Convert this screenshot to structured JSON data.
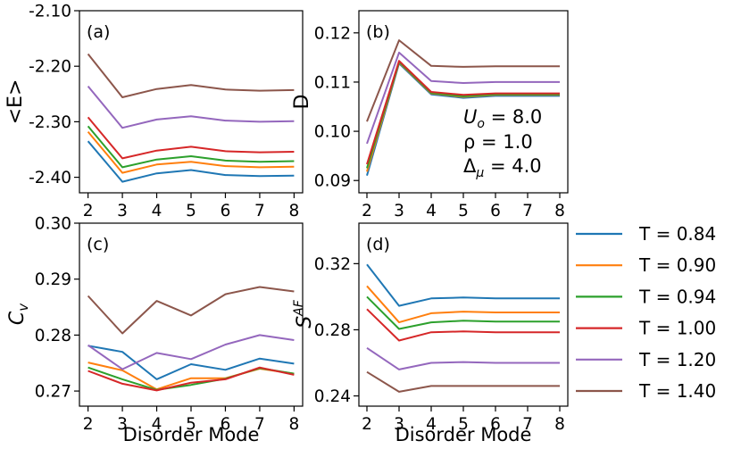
{
  "legend": {
    "entries": [
      "T = 0.84",
      "T = 0.90",
      "T = 0.94",
      "T = 1.00",
      "T = 1.20",
      "T = 1.40"
    ],
    "colors": [
      "#1f77b4",
      "#ff7f0e",
      "#2ca02c",
      "#d62728",
      "#9467bd",
      "#8c564b"
    ]
  },
  "annotation": {
    "line1": {
      "sym": "U",
      "sub": "o",
      "rest": " = 8.0"
    },
    "line2": "ρ = 1.0",
    "line3": {
      "sym": "Δ",
      "sub": "μ",
      "rest": " = 4.0"
    }
  },
  "chart_data": [
    {
      "id": "a",
      "type": "line",
      "panel_label": "(a)",
      "ylabel": "<E>",
      "xlabel": "",
      "x": [
        2,
        3,
        4,
        5,
        6,
        7,
        8
      ],
      "xlim": [
        1.75,
        8.25
      ],
      "ylim": [
        -2.428,
        -2.1
      ],
      "xticks": [
        "2",
        "3",
        "4",
        "5",
        "6",
        "7",
        "8"
      ],
      "yticks": [
        {
          "value": -2.1,
          "label": "-2.10"
        },
        {
          "value": -2.2,
          "label": "-2.20"
        },
        {
          "value": -2.3,
          "label": "-2.30"
        },
        {
          "value": -2.4,
          "label": "-2.40"
        }
      ],
      "series": [
        {
          "name": "T = 0.84",
          "color": "#1f77b4",
          "values": [
            -2.335,
            -2.408,
            -2.393,
            -2.387,
            -2.396,
            -2.398,
            -2.397
          ]
        },
        {
          "name": "T = 0.90",
          "color": "#ff7f0e",
          "values": [
            -2.318,
            -2.392,
            -2.377,
            -2.372,
            -2.38,
            -2.382,
            -2.381
          ]
        },
        {
          "name": "T = 0.94",
          "color": "#2ca02c",
          "values": [
            -2.308,
            -2.382,
            -2.368,
            -2.362,
            -2.37,
            -2.372,
            -2.371
          ]
        },
        {
          "name": "T = 1.00",
          "color": "#d62728",
          "values": [
            -2.292,
            -2.366,
            -2.352,
            -2.345,
            -2.353,
            -2.355,
            -2.354
          ]
        },
        {
          "name": "T = 1.20",
          "color": "#9467bd",
          "values": [
            -2.236,
            -2.311,
            -2.296,
            -2.29,
            -2.298,
            -2.3,
            -2.299
          ]
        },
        {
          "name": "T = 1.40",
          "color": "#8c564b",
          "values": [
            -2.178,
            -2.256,
            -2.241,
            -2.234,
            -2.242,
            -2.244,
            -2.243
          ]
        }
      ]
    },
    {
      "id": "b",
      "type": "line",
      "panel_label": "(b)",
      "ylabel": "D",
      "xlabel": "",
      "x": [
        2,
        3,
        4,
        5,
        6,
        7,
        8
      ],
      "xlim": [
        1.75,
        8.25
      ],
      "ylim": [
        0.0875,
        0.1245
      ],
      "xticks": [
        "2",
        "3",
        "4",
        "5",
        "6",
        "7",
        "8"
      ],
      "yticks": [
        {
          "value": 0.09,
          "label": "0.09"
        },
        {
          "value": 0.1,
          "label": "0.10"
        },
        {
          "value": 0.11,
          "label": "0.11"
        },
        {
          "value": 0.12,
          "label": "0.12"
        }
      ],
      "series": [
        {
          "name": "T = 0.84",
          "color": "#1f77b4",
          "values": [
            0.091,
            0.1138,
            0.1075,
            0.1068,
            0.1072,
            0.1072,
            0.1072
          ]
        },
        {
          "name": "T = 0.90",
          "color": "#ff7f0e",
          "values": [
            0.0918,
            0.114,
            0.1077,
            0.107,
            0.1074,
            0.1074,
            0.1074
          ]
        },
        {
          "name": "T = 0.94",
          "color": "#2ca02c",
          "values": [
            0.0925,
            0.1141,
            0.1078,
            0.1071,
            0.1075,
            0.1075,
            0.1075
          ]
        },
        {
          "name": "T = 1.00",
          "color": "#d62728",
          "values": [
            0.0933,
            0.1143,
            0.108,
            0.1074,
            0.1077,
            0.1077,
            0.1077
          ]
        },
        {
          "name": "T = 1.20",
          "color": "#9467bd",
          "values": [
            0.0975,
            0.116,
            0.1102,
            0.1098,
            0.11,
            0.11,
            0.11
          ]
        },
        {
          "name": "T = 1.40",
          "color": "#8c564b",
          "values": [
            0.102,
            0.1185,
            0.1133,
            0.1131,
            0.1132,
            0.1132,
            0.1132
          ]
        }
      ]
    },
    {
      "id": "c",
      "type": "line",
      "panel_label": "(c)",
      "ylabel": "C_v",
      "xlabel": "Disorder Mode",
      "x": [
        2,
        3,
        4,
        5,
        6,
        7,
        8
      ],
      "xlim": [
        1.75,
        8.25
      ],
      "ylim": [
        0.2673,
        0.3
      ],
      "xticks": [
        "2",
        "3",
        "4",
        "5",
        "6",
        "7",
        "8"
      ],
      "yticks": [
        {
          "value": 0.27,
          "label": "0.27"
        },
        {
          "value": 0.28,
          "label": "0.28"
        },
        {
          "value": 0.29,
          "label": "0.29"
        },
        {
          "value": 0.3,
          "label": "0.30"
        }
      ],
      "series": [
        {
          "name": "T = 0.84",
          "color": "#1f77b4",
          "values": [
            0.2781,
            0.277,
            0.2721,
            0.2748,
            0.2738,
            0.2758,
            0.2749
          ]
        },
        {
          "name": "T = 0.90",
          "color": "#ff7f0e",
          "values": [
            0.2751,
            0.2737,
            0.2703,
            0.2723,
            0.2723,
            0.274,
            0.2731
          ]
        },
        {
          "name": "T = 0.94",
          "color": "#2ca02c",
          "values": [
            0.2742,
            0.2721,
            0.2702,
            0.2711,
            0.2722,
            0.2741,
            0.2731
          ]
        },
        {
          "name": "T = 1.00",
          "color": "#d62728",
          "values": [
            0.2736,
            0.2713,
            0.2701,
            0.2715,
            0.2721,
            0.2742,
            0.2729
          ]
        },
        {
          "name": "T = 1.20",
          "color": "#9467bd",
          "values": [
            0.2782,
            0.2739,
            0.2768,
            0.2757,
            0.2783,
            0.28,
            0.2791
          ]
        },
        {
          "name": "T = 1.40",
          "color": "#8c564b",
          "values": [
            0.287,
            0.2803,
            0.2861,
            0.2835,
            0.2873,
            0.2886,
            0.2878
          ]
        }
      ]
    },
    {
      "id": "d",
      "type": "line",
      "panel_label": "(d)",
      "ylabel": "S^AF",
      "xlabel": "Disorder Mode",
      "x": [
        2,
        3,
        4,
        5,
        6,
        7,
        8
      ],
      "xlim": [
        1.75,
        8.25
      ],
      "ylim": [
        0.2338,
        0.3445
      ],
      "xticks": [
        "2",
        "3",
        "4",
        "5",
        "6",
        "7",
        "8"
      ],
      "yticks": [
        {
          "value": 0.24,
          "label": "0.24"
        },
        {
          "value": 0.28,
          "label": "0.28"
        },
        {
          "value": 0.32,
          "label": "0.32"
        }
      ],
      "series": [
        {
          "name": "T = 0.84",
          "color": "#1f77b4",
          "values": [
            0.3195,
            0.2945,
            0.299,
            0.2995,
            0.299,
            0.299,
            0.299
          ]
        },
        {
          "name": "T = 0.90",
          "color": "#ff7f0e",
          "values": [
            0.3065,
            0.2845,
            0.29,
            0.291,
            0.2905,
            0.2905,
            0.2905
          ]
        },
        {
          "name": "T = 0.94",
          "color": "#2ca02c",
          "values": [
            0.3,
            0.2805,
            0.2845,
            0.2855,
            0.285,
            0.285,
            0.285
          ]
        },
        {
          "name": "T = 1.00",
          "color": "#d62728",
          "values": [
            0.2925,
            0.2735,
            0.2785,
            0.279,
            0.2785,
            0.2785,
            0.2785
          ]
        },
        {
          "name": "T = 1.20",
          "color": "#9467bd",
          "values": [
            0.269,
            0.256,
            0.26,
            0.2605,
            0.26,
            0.26,
            0.26
          ]
        },
        {
          "name": "T = 1.40",
          "color": "#8c564b",
          "values": [
            0.2545,
            0.2425,
            0.246,
            0.246,
            0.246,
            0.246,
            0.246
          ]
        }
      ]
    }
  ]
}
